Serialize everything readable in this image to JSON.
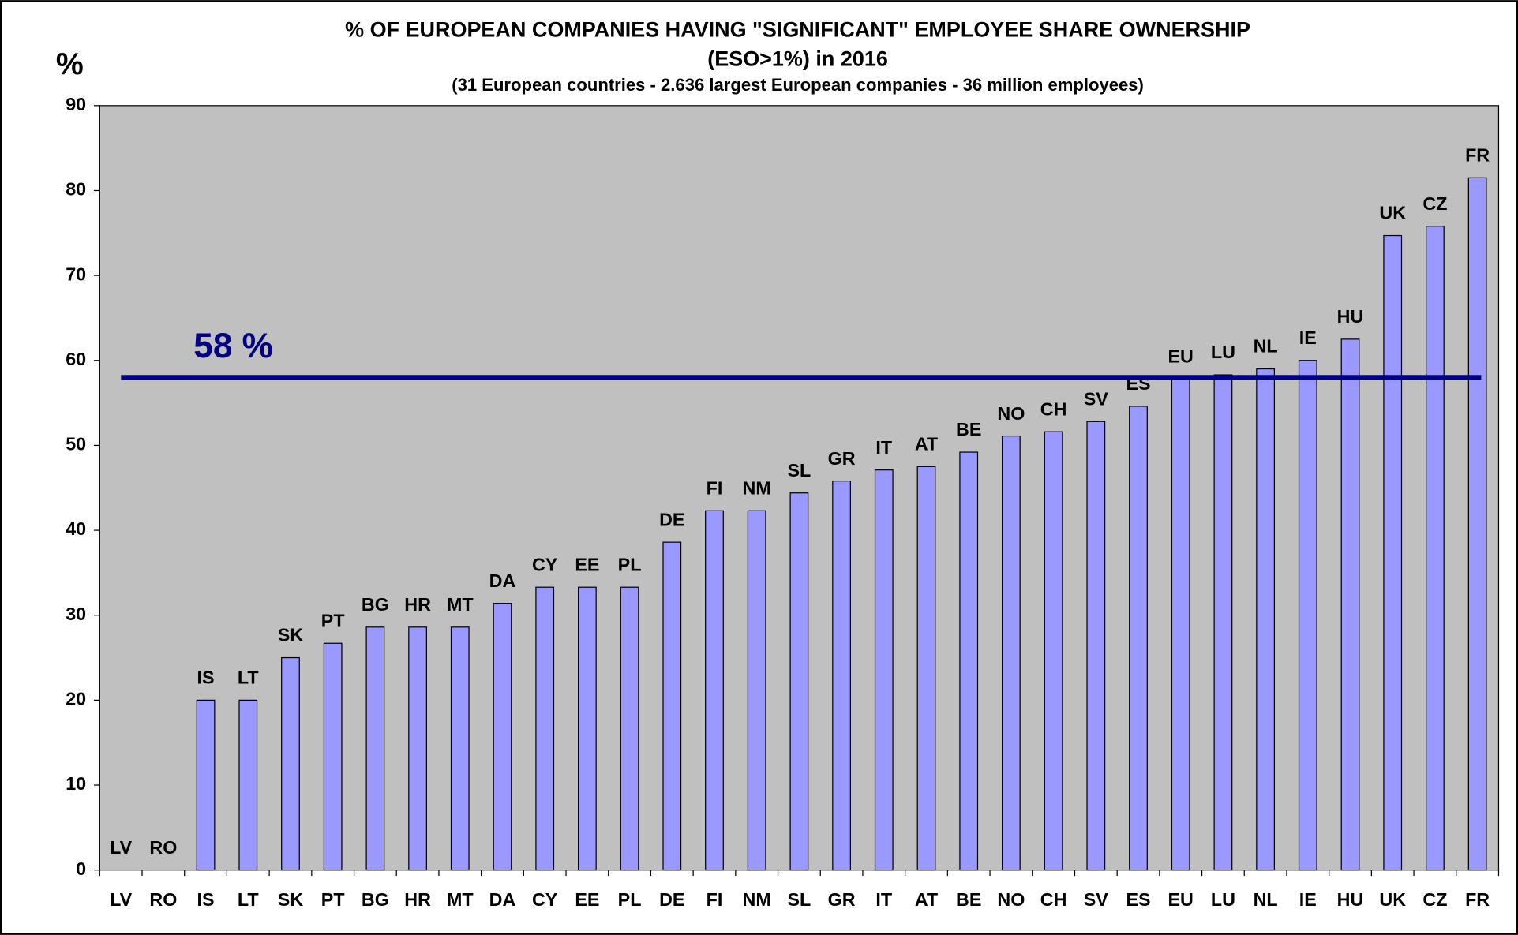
{
  "chart_data": {
    "type": "bar",
    "title": [
      "% OF EUROPEAN  COMPANIES  HAVING  \"SIGNIFICANT\"  EMPLOYEE  SHARE  OWNERSHIP",
      "(ESO>1%)  in 2016"
    ],
    "subtitle": "(31 European countries - 2.636 largest European companies - 36 million employees)",
    "y_label": "%",
    "categories": [
      "LV",
      "RO",
      "IS",
      "LT",
      "SK",
      "PT",
      "BG",
      "HR",
      "MT",
      "DA",
      "CY",
      "EE",
      "PL",
      "DE",
      "FI",
      "NM",
      "SL",
      "GR",
      "IT",
      "AT",
      "BE",
      "NO",
      "CH",
      "SV",
      "ES",
      "EU",
      "LU",
      "NL",
      "IE",
      "HU",
      "UK",
      "CZ",
      "FR"
    ],
    "values": [
      0,
      0,
      20,
      20,
      25,
      26.7,
      28.6,
      28.6,
      28.6,
      31.4,
      33.3,
      33.3,
      33.3,
      38.6,
      42.3,
      42.3,
      44.4,
      45.8,
      47.1,
      47.5,
      49.2,
      51.1,
      51.6,
      52.8,
      54.6,
      57.8,
      58.3,
      59,
      60,
      62.5,
      74.7,
      75.8,
      81.5
    ],
    "color": "#9999ff",
    "background": "#c0c0c0",
    "reference_line": {
      "value": 58,
      "label": "58 %",
      "color": "#000080"
    },
    "ylim": [
      0,
      90
    ],
    "yticks": [
      0,
      10,
      20,
      30,
      40,
      50,
      60,
      70,
      80,
      90
    ],
    "grid": false
  }
}
